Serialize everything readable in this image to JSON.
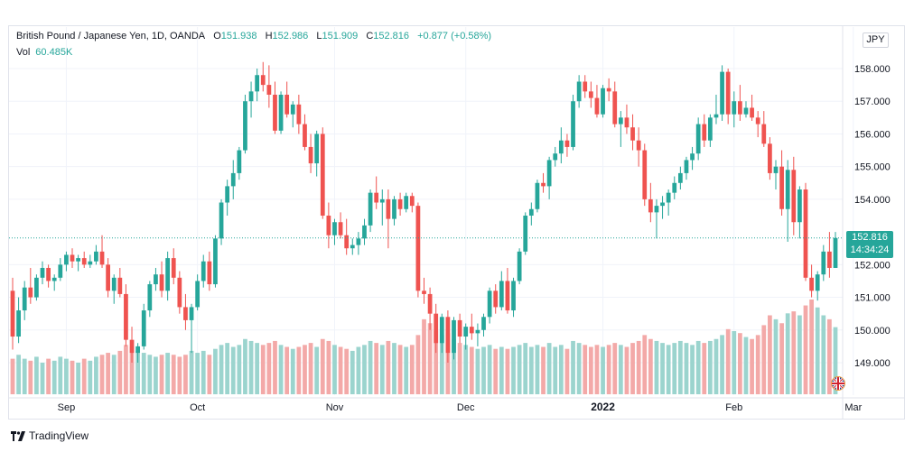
{
  "legend": {
    "symbol": "British Pound / Japanese Yen, 1D, OANDA",
    "o_label": "O",
    "o_value": "151.938",
    "h_label": "H",
    "h_value": "152.986",
    "l_label": "L",
    "l_value": "151.909",
    "c_label": "C",
    "c_value": "152.816",
    "change": "+0.877 (+0.58%)",
    "vol_label": "Vol",
    "vol_value": "60.485K"
  },
  "currency": "JPY",
  "last_price": "152.816",
  "countdown": "14:34:24",
  "brand": "TradingView",
  "colors": {
    "up": "#26a69a",
    "down": "#ef5350",
    "vol_up": "#9bd4ce",
    "vol_down": "#f3a9a8",
    "grid": "#f0f3fa",
    "axis_text": "#131722"
  },
  "chart_data": {
    "type": "candlestick",
    "symbol": "GBPJPY",
    "interval": "1D",
    "y_ticks": [
      "158.000",
      "157.000",
      "156.000",
      "155.000",
      "154.000",
      "152.000",
      "151.000",
      "150.000",
      "149.000"
    ],
    "y_range": [
      148.0,
      159.4
    ],
    "x_labels": [
      {
        "label": "Sep",
        "index": 9
      },
      {
        "label": "Oct",
        "index": 31
      },
      {
        "label": "Nov",
        "index": 54
      },
      {
        "label": "Dec",
        "index": 76
      },
      {
        "label": "2022",
        "index": 99
      },
      {
        "label": "Feb",
        "index": 121
      },
      {
        "label": "Mar",
        "index": 141
      }
    ],
    "price_line": 152.816,
    "ohlcv": [
      [
        151.2,
        151.6,
        149.4,
        149.8,
        18
      ],
      [
        149.8,
        151.0,
        149.6,
        150.6,
        20
      ],
      [
        150.6,
        151.5,
        150.3,
        151.3,
        18
      ],
      [
        151.3,
        151.9,
        150.8,
        151.0,
        17
      ],
      [
        151.0,
        151.7,
        150.9,
        151.6,
        19
      ],
      [
        151.6,
        152.1,
        151.4,
        151.9,
        16
      ],
      [
        151.9,
        152.0,
        151.3,
        151.5,
        18
      ],
      [
        151.5,
        151.7,
        151.2,
        151.6,
        17
      ],
      [
        151.6,
        152.2,
        151.5,
        152.0,
        19
      ],
      [
        152.0,
        152.4,
        151.8,
        152.3,
        18
      ],
      [
        152.3,
        152.5,
        151.9,
        152.1,
        17
      ],
      [
        152.1,
        152.3,
        151.8,
        152.2,
        16
      ],
      [
        152.2,
        152.4,
        151.9,
        152.0,
        18
      ],
      [
        152.0,
        152.3,
        151.9,
        152.1,
        17
      ],
      [
        152.1,
        152.6,
        152.0,
        152.4,
        19
      ],
      [
        152.4,
        152.9,
        151.9,
        152.0,
        20
      ],
      [
        152.0,
        152.2,
        151.0,
        151.2,
        21
      ],
      [
        151.2,
        151.7,
        150.8,
        151.6,
        20
      ],
      [
        151.6,
        151.9,
        151.0,
        151.1,
        22
      ],
      [
        151.1,
        151.4,
        149.5,
        149.7,
        25
      ],
      [
        149.7,
        150.1,
        149.0,
        149.3,
        24
      ],
      [
        149.3,
        149.6,
        149.0,
        149.5,
        22
      ],
      [
        149.5,
        150.8,
        149.4,
        150.6,
        21
      ],
      [
        150.6,
        151.5,
        150.4,
        151.4,
        20
      ],
      [
        151.4,
        151.9,
        151.2,
        151.7,
        19
      ],
      [
        151.7,
        152.1,
        151.0,
        151.2,
        20
      ],
      [
        151.2,
        152.4,
        150.9,
        152.2,
        21
      ],
      [
        152.2,
        152.5,
        151.4,
        151.6,
        20
      ],
      [
        151.6,
        151.8,
        150.5,
        150.7,
        19
      ],
      [
        150.7,
        151.1,
        150.0,
        150.3,
        20
      ],
      [
        150.3,
        150.8,
        149.3,
        150.7,
        22
      ],
      [
        150.7,
        151.7,
        150.6,
        151.5,
        21
      ],
      [
        151.5,
        152.3,
        151.3,
        152.1,
        22
      ],
      [
        152.1,
        152.4,
        151.2,
        151.4,
        20
      ],
      [
        151.4,
        152.9,
        151.3,
        152.8,
        23
      ],
      [
        152.8,
        154.0,
        152.6,
        153.9,
        25
      ],
      [
        153.9,
        154.6,
        153.5,
        154.4,
        26
      ],
      [
        154.4,
        155.2,
        154.0,
        154.8,
        24
      ],
      [
        154.8,
        155.6,
        154.6,
        155.5,
        25
      ],
      [
        155.5,
        157.2,
        155.4,
        157.0,
        28
      ],
      [
        157.0,
        157.6,
        156.5,
        157.3,
        27
      ],
      [
        157.3,
        158.0,
        157.0,
        157.8,
        26
      ],
      [
        157.8,
        158.2,
        157.3,
        157.5,
        25
      ],
      [
        157.5,
        158.1,
        156.8,
        157.2,
        26
      ],
      [
        157.2,
        157.6,
        156.0,
        156.1,
        27
      ],
      [
        156.1,
        157.3,
        156.0,
        157.2,
        25
      ],
      [
        157.2,
        157.6,
        156.5,
        156.6,
        24
      ],
      [
        156.6,
        157.0,
        156.2,
        156.9,
        23
      ],
      [
        156.9,
        157.2,
        156.0,
        156.3,
        24
      ],
      [
        156.3,
        156.6,
        155.5,
        155.6,
        25
      ],
      [
        155.6,
        156.0,
        154.8,
        155.1,
        26
      ],
      [
        155.1,
        156.1,
        154.7,
        156.0,
        24
      ],
      [
        156.0,
        156.2,
        153.4,
        153.5,
        28
      ],
      [
        153.5,
        153.9,
        152.5,
        152.9,
        27
      ],
      [
        152.9,
        153.4,
        152.6,
        153.3,
        25
      ],
      [
        153.3,
        153.6,
        152.8,
        152.9,
        24
      ],
      [
        152.9,
        153.4,
        152.3,
        152.5,
        23
      ],
      [
        152.5,
        152.8,
        152.3,
        152.6,
        22
      ],
      [
        152.6,
        153.0,
        152.3,
        152.8,
        24
      ],
      [
        152.8,
        153.4,
        152.6,
        153.2,
        25
      ],
      [
        153.2,
        154.3,
        153.0,
        154.2,
        27
      ],
      [
        154.2,
        154.7,
        153.7,
        153.9,
        26
      ],
      [
        153.9,
        154.3,
        153.2,
        154.0,
        25
      ],
      [
        154.0,
        154.3,
        152.5,
        153.4,
        27
      ],
      [
        153.4,
        154.1,
        153.2,
        154.0,
        26
      ],
      [
        154.0,
        154.2,
        153.5,
        153.7,
        25
      ],
      [
        153.7,
        154.2,
        153.6,
        154.1,
        24
      ],
      [
        154.1,
        154.2,
        153.6,
        153.8,
        25
      ],
      [
        153.8,
        153.9,
        151.0,
        151.2,
        30
      ],
      [
        151.2,
        151.6,
        150.8,
        151.1,
        38
      ],
      [
        151.1,
        151.3,
        150.0,
        150.5,
        36
      ],
      [
        150.5,
        150.8,
        149.3,
        149.6,
        32
      ],
      [
        149.6,
        150.5,
        149.3,
        150.4,
        30
      ],
      [
        150.4,
        150.6,
        149.0,
        149.3,
        31
      ],
      [
        149.3,
        150.4,
        149.1,
        150.3,
        28
      ],
      [
        150.3,
        150.5,
        149.6,
        149.8,
        26
      ],
      [
        149.8,
        150.2,
        149.4,
        150.1,
        25
      ],
      [
        150.1,
        150.5,
        149.7,
        149.9,
        24
      ],
      [
        149.9,
        150.2,
        149.5,
        150.0,
        23
      ],
      [
        150.0,
        150.5,
        149.8,
        150.4,
        24
      ],
      [
        150.4,
        151.3,
        150.2,
        151.2,
        25
      ],
      [
        151.2,
        151.4,
        150.5,
        150.7,
        23
      ],
      [
        150.7,
        151.8,
        150.6,
        151.5,
        24
      ],
      [
        151.5,
        151.9,
        150.5,
        150.6,
        23
      ],
      [
        150.6,
        151.6,
        150.4,
        151.5,
        24
      ],
      [
        151.5,
        152.5,
        151.4,
        152.4,
        25
      ],
      [
        152.4,
        153.6,
        152.3,
        153.5,
        26
      ],
      [
        153.5,
        153.9,
        153.2,
        153.7,
        24
      ],
      [
        153.7,
        154.6,
        153.6,
        154.5,
        25
      ],
      [
        154.5,
        154.8,
        154.2,
        154.4,
        24
      ],
      [
        154.4,
        155.3,
        154.0,
        155.2,
        26
      ],
      [
        155.2,
        155.6,
        155.0,
        155.4,
        24
      ],
      [
        155.4,
        156.2,
        155.1,
        155.8,
        25
      ],
      [
        155.8,
        156.0,
        155.3,
        155.6,
        23
      ],
      [
        155.6,
        157.2,
        155.5,
        157.0,
        27
      ],
      [
        157.0,
        157.8,
        156.8,
        157.6,
        26
      ],
      [
        157.6,
        157.8,
        157.1,
        157.3,
        25
      ],
      [
        157.3,
        157.6,
        156.8,
        157.1,
        24
      ],
      [
        157.1,
        157.5,
        156.5,
        156.6,
        25
      ],
      [
        156.6,
        157.5,
        156.5,
        157.4,
        24
      ],
      [
        157.4,
        157.7,
        157.0,
        157.3,
        25
      ],
      [
        157.3,
        157.6,
        156.2,
        156.3,
        26
      ],
      [
        156.3,
        156.7,
        155.6,
        156.5,
        25
      ],
      [
        156.5,
        156.9,
        156.0,
        156.2,
        24
      ],
      [
        156.2,
        156.6,
        155.5,
        155.8,
        26
      ],
      [
        155.8,
        156.2,
        155.0,
        155.5,
        27
      ],
      [
        155.5,
        155.7,
        153.8,
        154.0,
        30
      ],
      [
        154.0,
        154.5,
        153.3,
        153.6,
        28
      ],
      [
        153.6,
        154.0,
        152.8,
        153.8,
        27
      ],
      [
        153.8,
        154.1,
        153.4,
        153.9,
        26
      ],
      [
        153.9,
        154.3,
        153.5,
        154.2,
        25
      ],
      [
        154.2,
        154.7,
        154.0,
        154.5,
        26
      ],
      [
        154.5,
        155.0,
        154.3,
        154.8,
        27
      ],
      [
        154.8,
        155.3,
        154.6,
        155.2,
        26
      ],
      [
        155.2,
        155.6,
        154.9,
        155.4,
        25
      ],
      [
        155.4,
        156.5,
        155.2,
        156.3,
        27
      ],
      [
        156.3,
        156.6,
        155.6,
        155.8,
        26
      ],
      [
        155.8,
        156.6,
        155.6,
        156.5,
        27
      ],
      [
        156.5,
        157.2,
        156.3,
        156.6,
        28
      ],
      [
        156.6,
        158.1,
        156.4,
        157.9,
        30
      ],
      [
        157.9,
        158.0,
        156.3,
        156.6,
        33
      ],
      [
        156.6,
        157.3,
        156.2,
        157.0,
        32
      ],
      [
        157.0,
        157.5,
        156.4,
        156.6,
        31
      ],
      [
        156.6,
        157.0,
        156.5,
        156.8,
        29
      ],
      [
        156.8,
        157.2,
        156.4,
        156.5,
        28
      ],
      [
        156.5,
        156.7,
        155.9,
        156.3,
        30
      ],
      [
        156.3,
        156.7,
        155.6,
        155.7,
        35
      ],
      [
        155.7,
        155.9,
        154.6,
        154.8,
        40
      ],
      [
        154.8,
        155.2,
        154.3,
        155.0,
        38
      ],
      [
        155.0,
        155.5,
        153.5,
        153.7,
        36
      ],
      [
        153.7,
        155.2,
        152.7,
        154.9,
        41
      ],
      [
        154.9,
        155.3,
        152.9,
        153.3,
        42
      ],
      [
        153.3,
        154.4,
        152.8,
        154.3,
        40
      ],
      [
        154.3,
        154.5,
        151.5,
        151.6,
        45
      ],
      [
        151.6,
        152.0,
        151.0,
        151.2,
        48
      ],
      [
        151.2,
        151.8,
        150.9,
        151.7,
        44
      ],
      [
        151.7,
        152.6,
        151.5,
        152.4,
        40
      ],
      [
        152.4,
        153.0,
        151.6,
        151.9,
        38
      ],
      [
        151.9,
        153.0,
        151.9,
        152.816,
        34
      ]
    ]
  }
}
